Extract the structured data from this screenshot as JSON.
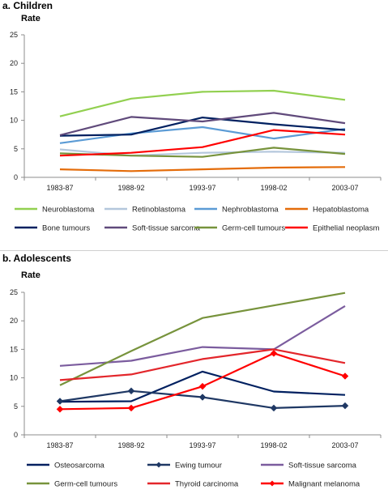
{
  "chart_data": [
    {
      "type": "line",
      "title": "a. Children",
      "ylabel": "Rate",
      "xlabel": "",
      "ylim": [
        0,
        25
      ],
      "yticks": [
        0,
        5,
        10,
        15,
        20,
        25
      ],
      "grid": false,
      "legend": "bottom",
      "categories": [
        "1983-87",
        "1988-92",
        "1993-97",
        "1998-02",
        "2003-07"
      ],
      "series": [
        {
          "name": "Neuroblastoma",
          "color": "#92d050",
          "marker": "none",
          "values": [
            10.7,
            13.8,
            15.0,
            15.2,
            13.6
          ]
        },
        {
          "name": "Retinoblastoma",
          "color": "#b4c7dc",
          "marker": "none",
          "values": [
            4.9,
            3.8,
            4.3,
            4.5,
            4.3
          ]
        },
        {
          "name": "Nephroblastoma",
          "color": "#5b9bd5",
          "marker": "none",
          "values": [
            6.0,
            7.7,
            8.8,
            6.8,
            8.5
          ]
        },
        {
          "name": "Hepatoblastoma",
          "color": "#e46c0a",
          "marker": "none",
          "values": [
            1.4,
            1.1,
            1.4,
            1.7,
            1.8
          ]
        },
        {
          "name": "Bone tumours",
          "color": "#002060",
          "marker": "none",
          "values": [
            7.3,
            7.5,
            10.5,
            9.3,
            8.3
          ]
        },
        {
          "name": "Soft-tissue sarcoma",
          "color": "#604a7b",
          "marker": "none",
          "values": [
            7.4,
            10.6,
            9.8,
            11.3,
            9.5
          ]
        },
        {
          "name": "Germ-cell tumours",
          "color": "#77933c",
          "marker": "none",
          "values": [
            4.2,
            3.8,
            3.6,
            5.2,
            4.1
          ]
        },
        {
          "name": "Epithelial neoplasm",
          "color": "#ff0000",
          "marker": "none",
          "values": [
            3.8,
            4.3,
            5.3,
            8.3,
            7.5
          ]
        }
      ]
    },
    {
      "type": "line",
      "title": "b. Adolescents",
      "ylabel": "Rate",
      "xlabel": "",
      "ylim": [
        0,
        25
      ],
      "yticks": [
        0,
        5,
        10,
        15,
        20,
        25
      ],
      "grid": false,
      "legend": "bottom",
      "categories": [
        "1983-87",
        "1988-92",
        "1993-97",
        "1998-02",
        "2003-07"
      ],
      "series": [
        {
          "name": "Osteosarcoma",
          "color": "#002060",
          "marker": "none",
          "values": [
            5.8,
            5.9,
            11.1,
            7.6,
            7.0
          ]
        },
        {
          "name": "Ewing tumour",
          "color": "#1f3864",
          "marker": "diamond",
          "values": [
            5.9,
            7.7,
            6.6,
            4.7,
            5.1
          ]
        },
        {
          "name": "Soft-tissue sarcoma",
          "color": "#7b5c9e",
          "marker": "none",
          "values": [
            12.1,
            13.0,
            15.4,
            15.0,
            22.6
          ]
        },
        {
          "name": "Germ-cell tumours",
          "color": "#77933c",
          "marker": "none",
          "values": [
            8.7,
            14.7,
            20.5,
            22.7,
            24.9
          ]
        },
        {
          "name": "Thyroid carcinoma",
          "color": "#e3262b",
          "marker": "none",
          "values": [
            9.6,
            10.6,
            13.3,
            15.0,
            12.6
          ]
        },
        {
          "name": "Malignant melanoma",
          "color": "#ff0000",
          "marker": "diamond",
          "values": [
            4.5,
            4.7,
            8.5,
            14.3,
            10.3
          ]
        }
      ]
    }
  ]
}
